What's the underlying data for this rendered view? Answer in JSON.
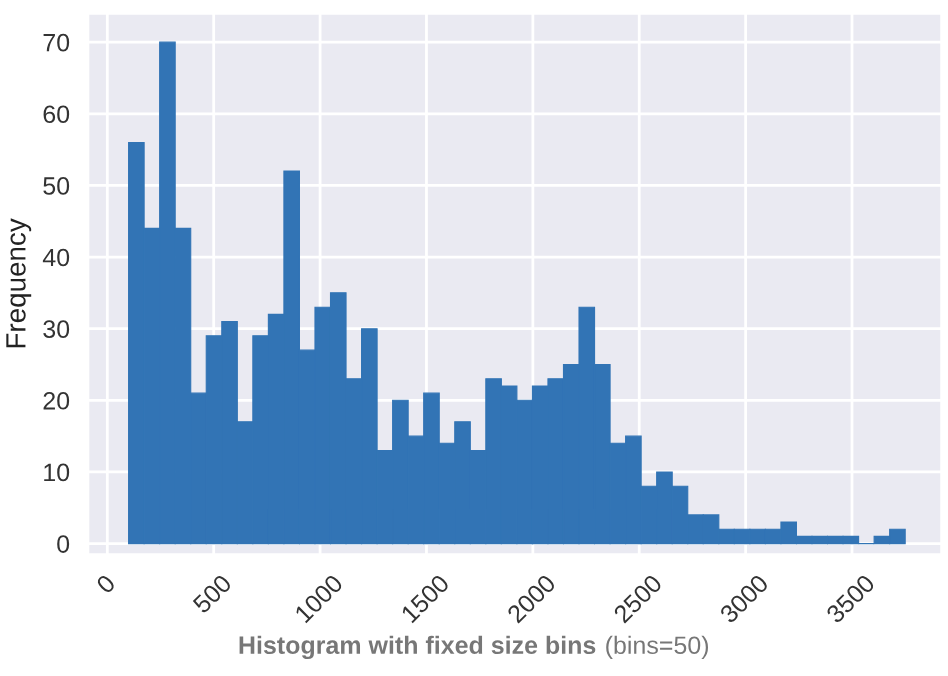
{
  "chart_data": {
    "type": "histogram",
    "xlabel": "Histogram with fixed size bins",
    "annotations": [
      "(bins=50)"
    ],
    "ylabel": "Frequency",
    "bins": [
      100,
      173,
      246,
      319,
      392,
      465,
      538,
      611,
      684,
      757,
      830,
      903,
      976,
      1049,
      1122,
      1195,
      1268,
      1341,
      1414,
      1487,
      1560,
      1633,
      1706,
      1779,
      1852,
      1925,
      1998,
      2071,
      2144,
      2217,
      2290,
      2363,
      2436,
      2509,
      2582,
      2655,
      2728,
      2801,
      2874,
      2947,
      3020,
      3093,
      3166,
      3239,
      3312,
      3385,
      3458,
      3531,
      3604,
      3677,
      3750
    ],
    "values": [
      56,
      44,
      70,
      44,
      21,
      29,
      31,
      17,
      29,
      32,
      52,
      27,
      33,
      35,
      23,
      30,
      13,
      20,
      15,
      21,
      14,
      17,
      13,
      23,
      22,
      20,
      22,
      23,
      25,
      33,
      25,
      14,
      15,
      8,
      10,
      8,
      4,
      4,
      2,
      2,
      2,
      2,
      3,
      1,
      1,
      1,
      1,
      0,
      1,
      2
    ],
    "color": "#3274b5",
    "xlim": [
      -90,
      3920
    ],
    "ylim": [
      -1.5,
      74
    ],
    "xticks": [
      0,
      500,
      1000,
      1500,
      2000,
      2500,
      3000,
      3500
    ],
    "yticks": [
      0,
      10,
      20,
      30,
      40,
      50,
      60,
      70
    ],
    "grid": true
  }
}
